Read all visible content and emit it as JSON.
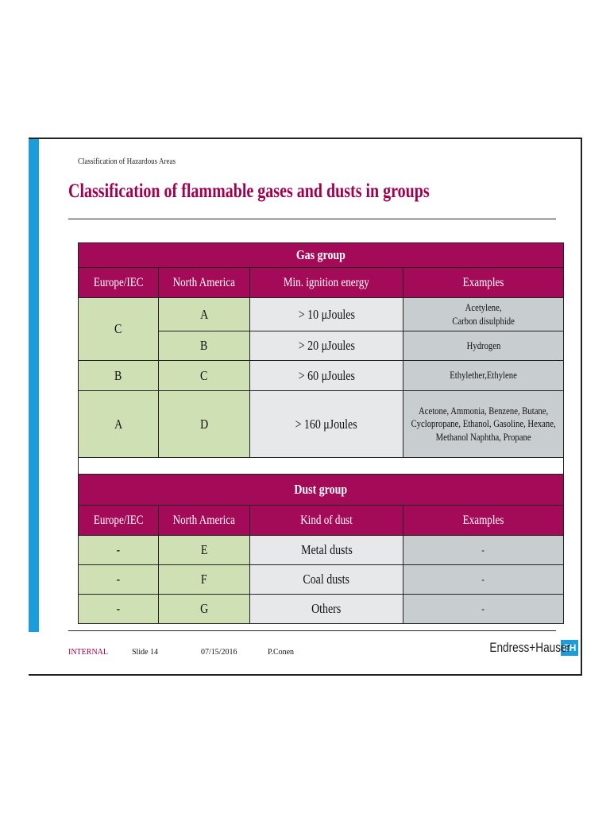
{
  "header": {
    "subtitle": "Classification of Hazardous Areas",
    "title": "Classification of flammable gases and dusts in groups"
  },
  "gas_table": {
    "group_title": "Gas group",
    "columns": [
      "Europe/IEC",
      "North America",
      "Min. ignition energy",
      "Examples"
    ],
    "rows": [
      {
        "europe": "C",
        "north_america": "A",
        "energy": "> 10 μJoules",
        "examples": "Acetylene,\nCarbon disulphide"
      },
      {
        "europe": "C",
        "north_america": "B",
        "energy": "> 20 μJoules",
        "examples": "Hydrogen"
      },
      {
        "europe": "B",
        "north_america": "C",
        "energy": "> 60 μJoules",
        "examples": "Ethylether,Ethylene"
      },
      {
        "europe": "A",
        "north_america": "D",
        "energy": "> 160 μJoules",
        "examples": "Acetone, Ammonia, Benzene, Butane, Cyclopropane, Ethanol, Gasoline, Hexane, Methanol Naphtha, Propane"
      }
    ]
  },
  "dust_table": {
    "group_title": "Dust group",
    "columns": [
      "Europe/IEC",
      "North America",
      "Kind of dust",
      "Examples"
    ],
    "rows": [
      {
        "europe": "-",
        "north_america": "E",
        "kind": "Metal dusts",
        "examples": "-"
      },
      {
        "europe": "-",
        "north_america": "F",
        "kind": "Coal dusts",
        "examples": "-"
      },
      {
        "europe": "-",
        "north_america": "G",
        "kind": "Others",
        "examples": "-"
      }
    ]
  },
  "footer": {
    "classification": "INTERNAL",
    "slide": "Slide 14",
    "date": "07/15/2016",
    "author": "P.Conen",
    "brand": "Endress+Hauser",
    "brand_mark": "EH"
  },
  "colors": {
    "accent_blue": "#1a9ddb",
    "brand_magenta": "#a30a58",
    "green_cell": "#cfe0b4",
    "light_cell": "#e6e8ea",
    "grey_cell": "#c8cdd0"
  }
}
